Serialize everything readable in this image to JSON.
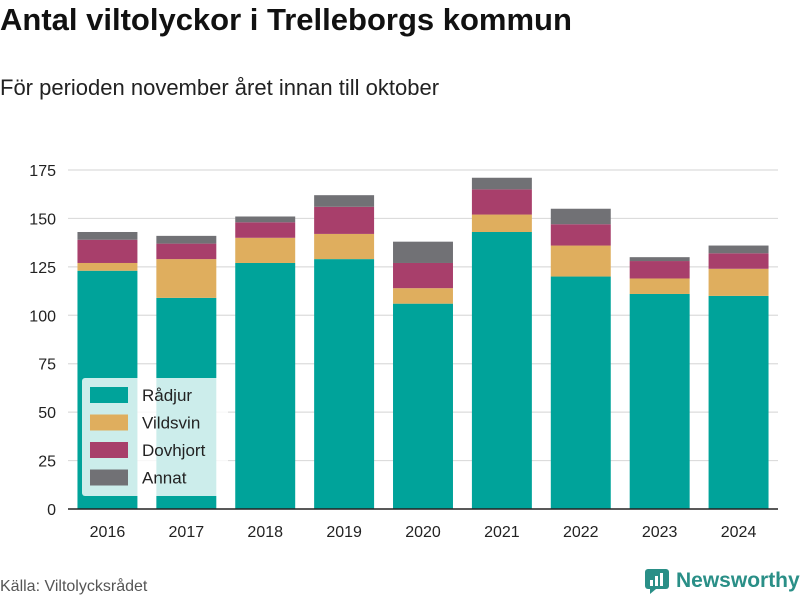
{
  "title": "Antal viltolyckor i Trelleborgs kommun",
  "subtitle": "För perioden november året innan till oktober",
  "source": "Källa: Viltolycksrådet",
  "brand": "Newsworthy",
  "chart_data": {
    "type": "bar",
    "stacked": true,
    "title": "Antal viltolyckor i Trelleborgs kommun",
    "subtitle": "För perioden november året innan till oktober",
    "categories": [
      "2016",
      "2017",
      "2018",
      "2019",
      "2020",
      "2021",
      "2022",
      "2023",
      "2024"
    ],
    "series": [
      {
        "name": "Rådjur",
        "color": "#00a39a",
        "values": [
          123,
          109,
          127,
          129,
          106,
          143,
          120,
          111,
          110
        ]
      },
      {
        "name": "Vildsvin",
        "color": "#dfae5e",
        "values": [
          4,
          20,
          13,
          13,
          8,
          9,
          16,
          8,
          14
        ]
      },
      {
        "name": "Dovhjort",
        "color": "#a83f6b",
        "values": [
          12,
          8,
          8,
          14,
          13,
          13,
          11,
          9,
          8
        ]
      },
      {
        "name": "Annat",
        "color": "#717175",
        "values": [
          4,
          4,
          3,
          6,
          11,
          6,
          8,
          2,
          4
        ]
      }
    ],
    "yticks": [
      0,
      25,
      50,
      75,
      100,
      125,
      150,
      175
    ],
    "ylim": [
      0,
      180
    ],
    "xlabel": "",
    "ylabel": "",
    "grid": true,
    "legend_position": "bottom-left"
  }
}
